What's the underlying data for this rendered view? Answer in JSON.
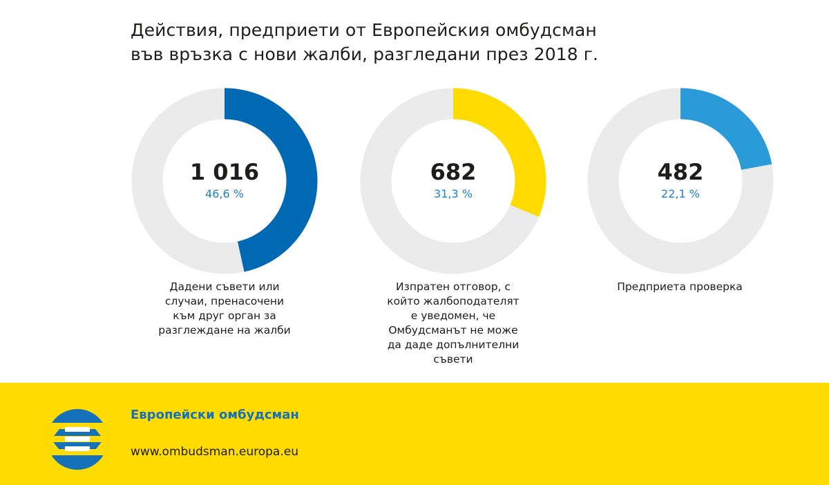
{
  "title": {
    "line1": "Действия, предприети от Европейския омбудсман",
    "line2": "във връзка с нови жалби, разгледани през 2018 г."
  },
  "colors": {
    "track": "#ebebeb",
    "footer_bg": "#ffdb00",
    "number": "#1d1d1b",
    "percent": "#1f80c2"
  },
  "chart_data": [
    {
      "type": "pie",
      "subtype": "donut",
      "value": 1016,
      "value_label": "1 016",
      "percent": 46.6,
      "percent_label": "46,6 %",
      "color": "#0069b4",
      "caption_lines": [
        "Дадени съвети или",
        "случаи, пренасочени",
        "към друг орган за",
        "разглеждане на жалби"
      ]
    },
    {
      "type": "pie",
      "subtype": "donut",
      "value": 682,
      "value_label": "682",
      "percent": 31.3,
      "percent_label": "31,3 %",
      "color": "#ffdb00",
      "caption_lines": [
        "Изпратен отговор, с",
        "който жалбоподателят",
        "е уведомен, че",
        "Омбудсманът не може",
        "да даде допълнителни",
        "съвети"
      ]
    },
    {
      "type": "pie",
      "subtype": "donut",
      "value": 482,
      "value_label": "482",
      "percent": 22.1,
      "percent_label": "22,1 %",
      "color": "#2a9bd8",
      "caption_lines": [
        "Предприета проверка"
      ]
    }
  ],
  "footer": {
    "name": "Европейски омбудсман",
    "url": "www.ombudsman.europa.eu",
    "logo_icon": "european-ombudsman-logo-icon"
  }
}
